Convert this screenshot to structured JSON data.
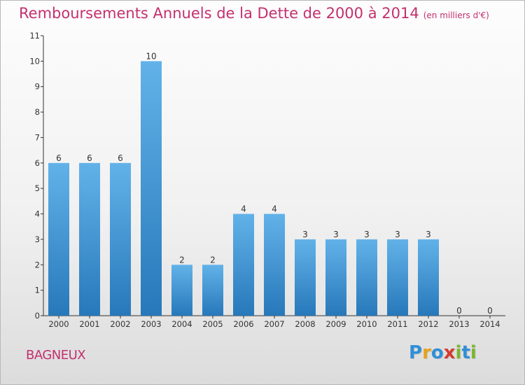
{
  "title": "Remboursements Annuels de la Dette de 2000 à 2014",
  "unit": "(en milliers d'€)",
  "commune": "BAGNEUX",
  "logo": {
    "text": "Proxiti",
    "letters": [
      {
        "char": "P",
        "color": "#2f8fd6"
      },
      {
        "char": "r",
        "color": "#e9a11a"
      },
      {
        "char": "o",
        "color": "#2f8fd6"
      },
      {
        "char": "x",
        "color": "#d63a2e"
      },
      {
        "char": "i",
        "color": "#7bb630"
      },
      {
        "char": "t",
        "color": "#2f8fd6"
      },
      {
        "char": "i",
        "color": "#7bb630"
      }
    ]
  },
  "colors": {
    "title": "#c4306e",
    "bar_light": "#5eaee6",
    "bar_dark": "#2b7fc0",
    "axis": "#333333"
  },
  "chart_data": {
    "type": "bar",
    "title": "Remboursements Annuels de la Dette de 2000 à 2014",
    "xlabel": "",
    "ylabel": "en milliers d'€",
    "categories": [
      "2000",
      "2001",
      "2002",
      "2003",
      "2004",
      "2005",
      "2006",
      "2007",
      "2008",
      "2009",
      "2010",
      "2011",
      "2012",
      "2013",
      "2014"
    ],
    "values": [
      6,
      6,
      6,
      10,
      2,
      2,
      4,
      4,
      3,
      3,
      3,
      3,
      3,
      0,
      0
    ],
    "ylim": [
      0,
      11
    ],
    "yticks": [
      0,
      1,
      2,
      3,
      4,
      5,
      6,
      7,
      8,
      9,
      10,
      11
    ],
    "grid": false,
    "legend": "none"
  }
}
